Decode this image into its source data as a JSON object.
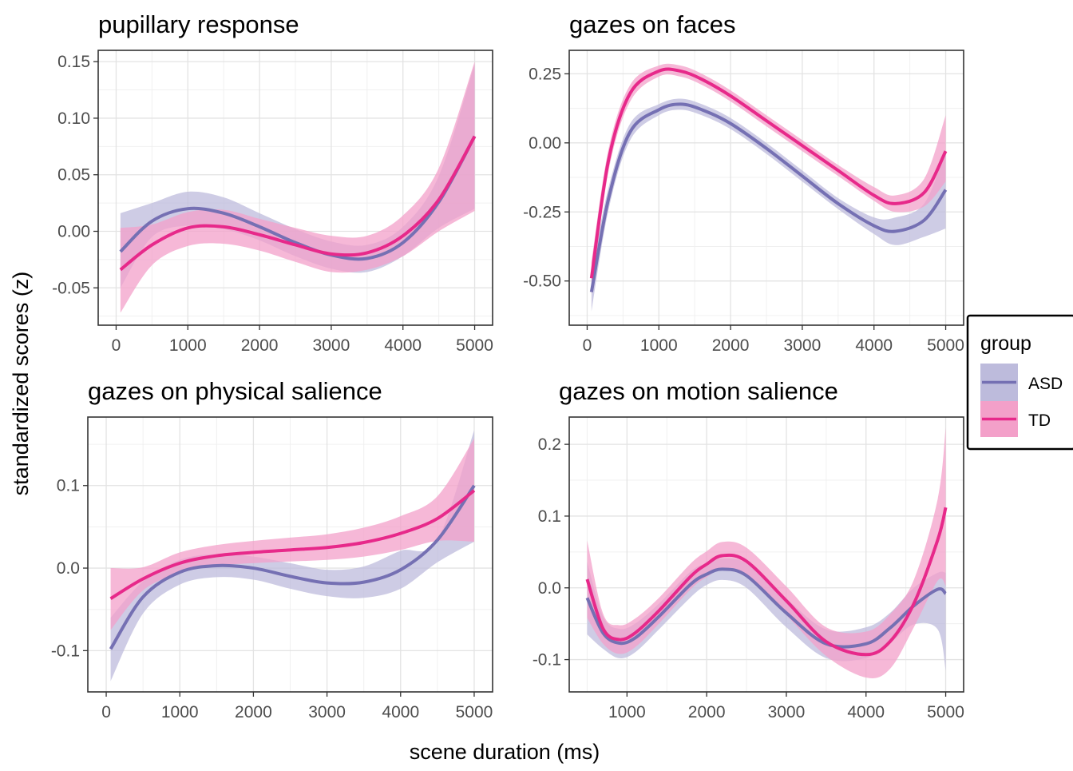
{
  "figure": {
    "xlabel": "scene duration (ms)",
    "ylabel": "standardized scores (z)"
  },
  "legend": {
    "title": "group",
    "position": "right",
    "items": [
      {
        "label": "ASD",
        "line_color": "#7570b3",
        "band_color": "#bdbbdc"
      },
      {
        "label": "TD",
        "line_color": "#e7298a",
        "band_color": "#f3a0c9"
      }
    ]
  },
  "chart_data": [
    {
      "type": "line",
      "title": "pupillary response",
      "xlim": [
        -250,
        5250
      ],
      "ylim": [
        -0.083,
        0.16
      ],
      "xticks": [
        0,
        1000,
        2000,
        3000,
        4000,
        5000
      ],
      "xtick_labels": [
        "0",
        "1000",
        "2000",
        "3000",
        "4000",
        "5000"
      ],
      "yticks": [
        -0.05,
        0,
        0.05,
        0.1,
        0.15
      ],
      "ytick_labels": [
        "-0.05",
        "0.00",
        "0.05",
        "0.10",
        "0.15"
      ],
      "grid": true,
      "series": [
        {
          "name": "ASD",
          "x": [
            60,
            500,
            1000,
            1500,
            2000,
            2500,
            3000,
            3500,
            4000,
            4500,
            5000
          ],
          "y": [
            -0.018,
            0.009,
            0.02,
            0.016,
            0.004,
            -0.01,
            -0.021,
            -0.024,
            -0.01,
            0.026,
            0.084
          ],
          "lower": [
            -0.05,
            -0.005,
            0.005,
            0.002,
            -0.008,
            -0.022,
            -0.033,
            -0.036,
            -0.022,
            0.003,
            0.02
          ],
          "upper": [
            0.016,
            0.025,
            0.035,
            0.03,
            0.016,
            0.002,
            -0.009,
            -0.012,
            0.004,
            0.049,
            0.148
          ]
        },
        {
          "name": "TD",
          "x": [
            60,
            500,
            1000,
            1500,
            2000,
            2500,
            3000,
            3500,
            4000,
            4500,
            5000
          ],
          "y": [
            -0.034,
            -0.012,
            0.003,
            0.004,
            -0.003,
            -0.012,
            -0.02,
            -0.019,
            -0.004,
            0.028,
            0.084
          ],
          "lower": [
            -0.072,
            -0.03,
            -0.013,
            -0.011,
            -0.017,
            -0.027,
            -0.036,
            -0.034,
            -0.022,
            0.0,
            0.018
          ],
          "upper": [
            0.003,
            0.006,
            0.017,
            0.019,
            0.011,
            0.003,
            -0.004,
            -0.004,
            0.014,
            0.056,
            0.15
          ]
        }
      ]
    },
    {
      "type": "line",
      "title": "gazes on faces",
      "xlim": [
        -250,
        5250
      ],
      "ylim": [
        -0.66,
        0.335
      ],
      "xticks": [
        0,
        1000,
        2000,
        3000,
        4000,
        5000
      ],
      "xtick_labels": [
        "0",
        "1000",
        "2000",
        "3000",
        "4000",
        "5000"
      ],
      "yticks": [
        -0.5,
        -0.25,
        0,
        0.25
      ],
      "ytick_labels": [
        "-0.50",
        "-0.25",
        "0.00",
        "0.25"
      ],
      "grid": true,
      "series": [
        {
          "name": "ASD",
          "x": [
            60,
            300,
            600,
            1000,
            1300,
            1600,
            2000,
            2500,
            3000,
            3500,
            4000,
            4300,
            4700,
            5000
          ],
          "y": [
            -0.54,
            -0.2,
            0.04,
            0.12,
            0.14,
            0.12,
            0.07,
            -0.02,
            -0.12,
            -0.22,
            -0.3,
            -0.32,
            -0.28,
            -0.17
          ],
          "lower": [
            -0.61,
            -0.24,
            0.01,
            0.1,
            0.12,
            0.1,
            0.05,
            -0.04,
            -0.14,
            -0.24,
            -0.33,
            -0.37,
            -0.34,
            -0.31
          ],
          "upper": [
            -0.47,
            -0.16,
            0.07,
            0.14,
            0.16,
            0.14,
            0.09,
            0.0,
            -0.1,
            -0.2,
            -0.27,
            -0.27,
            -0.22,
            -0.03
          ]
        },
        {
          "name": "TD",
          "x": [
            60,
            300,
            600,
            1000,
            1300,
            1600,
            2000,
            2500,
            3000,
            3500,
            4000,
            4300,
            4700,
            5000
          ],
          "y": [
            -0.49,
            -0.06,
            0.18,
            0.26,
            0.26,
            0.23,
            0.17,
            0.08,
            -0.01,
            -0.1,
            -0.19,
            -0.22,
            -0.18,
            -0.03
          ],
          "lower": [
            -0.55,
            -0.1,
            0.15,
            0.24,
            0.24,
            0.21,
            0.15,
            0.06,
            -0.03,
            -0.12,
            -0.21,
            -0.25,
            -0.23,
            -0.14
          ],
          "upper": [
            -0.43,
            -0.02,
            0.21,
            0.28,
            0.28,
            0.25,
            0.19,
            0.1,
            0.01,
            -0.08,
            -0.16,
            -0.19,
            -0.13,
            0.1
          ]
        }
      ]
    },
    {
      "type": "line",
      "title": "gazes on physical salience",
      "xlim": [
        -250,
        5250
      ],
      "ylim": [
        -0.15,
        0.183
      ],
      "xticks": [
        0,
        1000,
        2000,
        3000,
        4000,
        5000
      ],
      "xtick_labels": [
        "0",
        "1000",
        "2000",
        "3000",
        "4000",
        "5000"
      ],
      "yticks": [
        -0.1,
        0,
        0.1
      ],
      "ytick_labels": [
        "-0.1",
        "0.0",
        "0.1"
      ],
      "grid": true,
      "series": [
        {
          "name": "ASD",
          "x": [
            60,
            500,
            1000,
            1500,
            2000,
            2500,
            3000,
            3500,
            4000,
            4500,
            5000
          ],
          "y": [
            -0.098,
            -0.035,
            -0.005,
            0.003,
            0.0,
            -0.01,
            -0.018,
            -0.017,
            -0.002,
            0.034,
            0.1
          ],
          "lower": [
            -0.137,
            -0.055,
            -0.02,
            -0.011,
            -0.014,
            -0.025,
            -0.034,
            -0.036,
            -0.025,
            0.007,
            0.032
          ],
          "upper": [
            -0.06,
            -0.016,
            0.01,
            0.017,
            0.014,
            0.006,
            -0.002,
            0.002,
            0.021,
            0.034,
            0.167
          ]
        },
        {
          "name": "TD",
          "x": [
            60,
            500,
            1000,
            1500,
            2000,
            2500,
            3000,
            3500,
            4000,
            4500,
            5000
          ],
          "y": [
            -0.037,
            -0.013,
            0.006,
            0.015,
            0.019,
            0.022,
            0.025,
            0.031,
            0.042,
            0.06,
            0.094
          ],
          "lower": [
            -0.075,
            -0.027,
            -0.006,
            0.003,
            0.006,
            0.008,
            0.01,
            0.014,
            0.022,
            0.033,
            0.032
          ],
          "upper": [
            0.0,
            0.001,
            0.019,
            0.028,
            0.033,
            0.037,
            0.041,
            0.049,
            0.063,
            0.087,
            0.157
          ]
        }
      ]
    },
    {
      "type": "line",
      "title": "gazes on motion salience",
      "xlim": [
        275,
        5225
      ],
      "ylim": [
        -0.145,
        0.238
      ],
      "xticks": [
        1000,
        2000,
        3000,
        4000,
        5000
      ],
      "xtick_labels": [
        "1000",
        "2000",
        "3000",
        "4000",
        "5000"
      ],
      "yticks": [
        -0.1,
        0,
        0.1,
        0.2
      ],
      "ytick_labels": [
        "-0.1",
        "0.0",
        "0.1",
        "0.2"
      ],
      "grid": true,
      "series": [
        {
          "name": "ASD",
          "x": [
            500,
            700,
            900,
            1100,
            1400,
            1800,
            2000,
            2200,
            2500,
            3000,
            3500,
            4000,
            4300,
            4600,
            4900,
            5000
          ],
          "y": [
            -0.014,
            -0.063,
            -0.077,
            -0.07,
            -0.04,
            0.005,
            0.019,
            0.026,
            0.017,
            -0.035,
            -0.078,
            -0.078,
            -0.056,
            -0.025,
            -0.002,
            -0.008
          ],
          "lower": [
            -0.065,
            -0.085,
            -0.098,
            -0.09,
            -0.058,
            -0.013,
            0.004,
            0.011,
            0.0,
            -0.055,
            -0.098,
            -0.098,
            -0.077,
            -0.051,
            -0.058,
            -0.115
          ],
          "upper": [
            0.036,
            -0.04,
            -0.057,
            -0.05,
            -0.022,
            0.023,
            0.034,
            0.041,
            0.034,
            -0.015,
            -0.058,
            -0.055,
            -0.035,
            0.0,
            0.021,
            0.021
          ]
        },
        {
          "name": "TD",
          "x": [
            500,
            700,
            900,
            1100,
            1400,
            1800,
            2000,
            2200,
            2500,
            3000,
            3500,
            4000,
            4300,
            4600,
            4900,
            5000
          ],
          "y": [
            0.012,
            -0.057,
            -0.072,
            -0.063,
            -0.032,
            0.016,
            0.033,
            0.045,
            0.037,
            -0.018,
            -0.075,
            -0.093,
            -0.075,
            -0.022,
            0.067,
            0.112
          ],
          "lower": [
            -0.042,
            -0.078,
            -0.092,
            -0.083,
            -0.05,
            -0.002,
            0.015,
            0.026,
            0.018,
            -0.038,
            -0.095,
            -0.125,
            -0.113,
            -0.055,
            0.01,
            0.003
          ],
          "upper": [
            0.066,
            -0.036,
            -0.052,
            -0.043,
            -0.014,
            0.034,
            0.051,
            0.064,
            0.056,
            0.002,
            -0.055,
            -0.061,
            -0.037,
            0.011,
            0.124,
            0.223
          ]
        }
      ]
    }
  ]
}
